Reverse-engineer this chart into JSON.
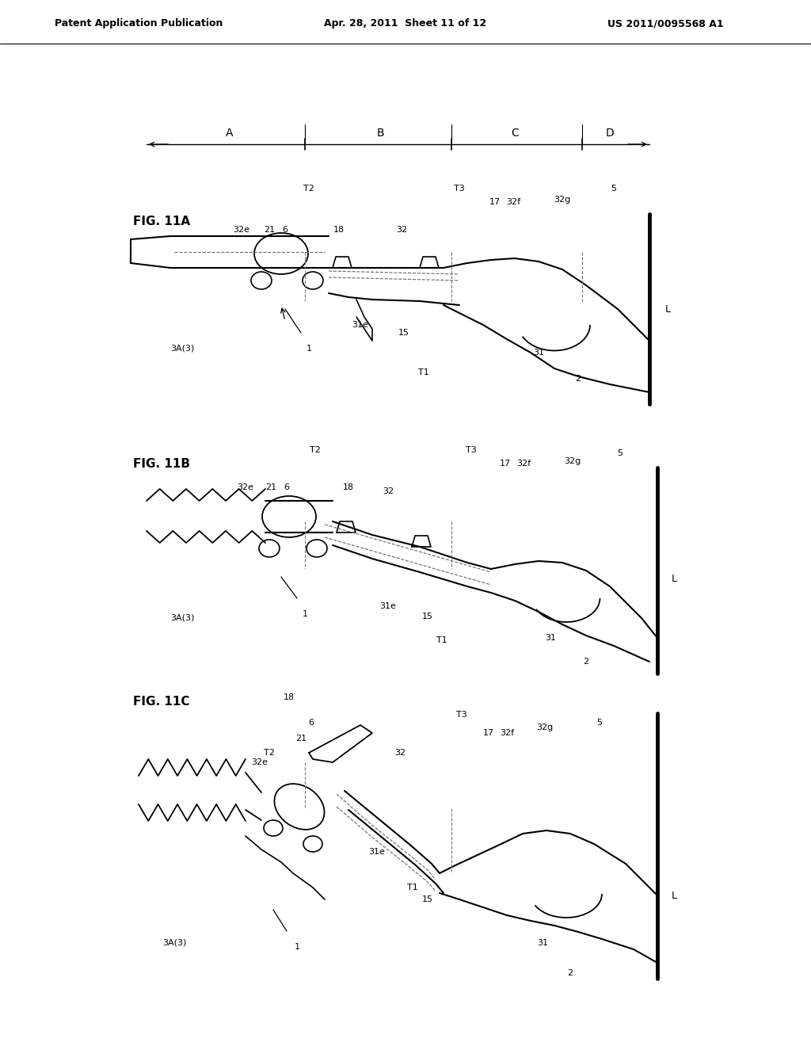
{
  "header_left": "Patent Application Publication",
  "header_mid": "Apr. 28, 2011  Sheet 11 of 12",
  "header_right": "US 2011/0095568 A1",
  "bg": "#ffffff",
  "lc": "#000000"
}
